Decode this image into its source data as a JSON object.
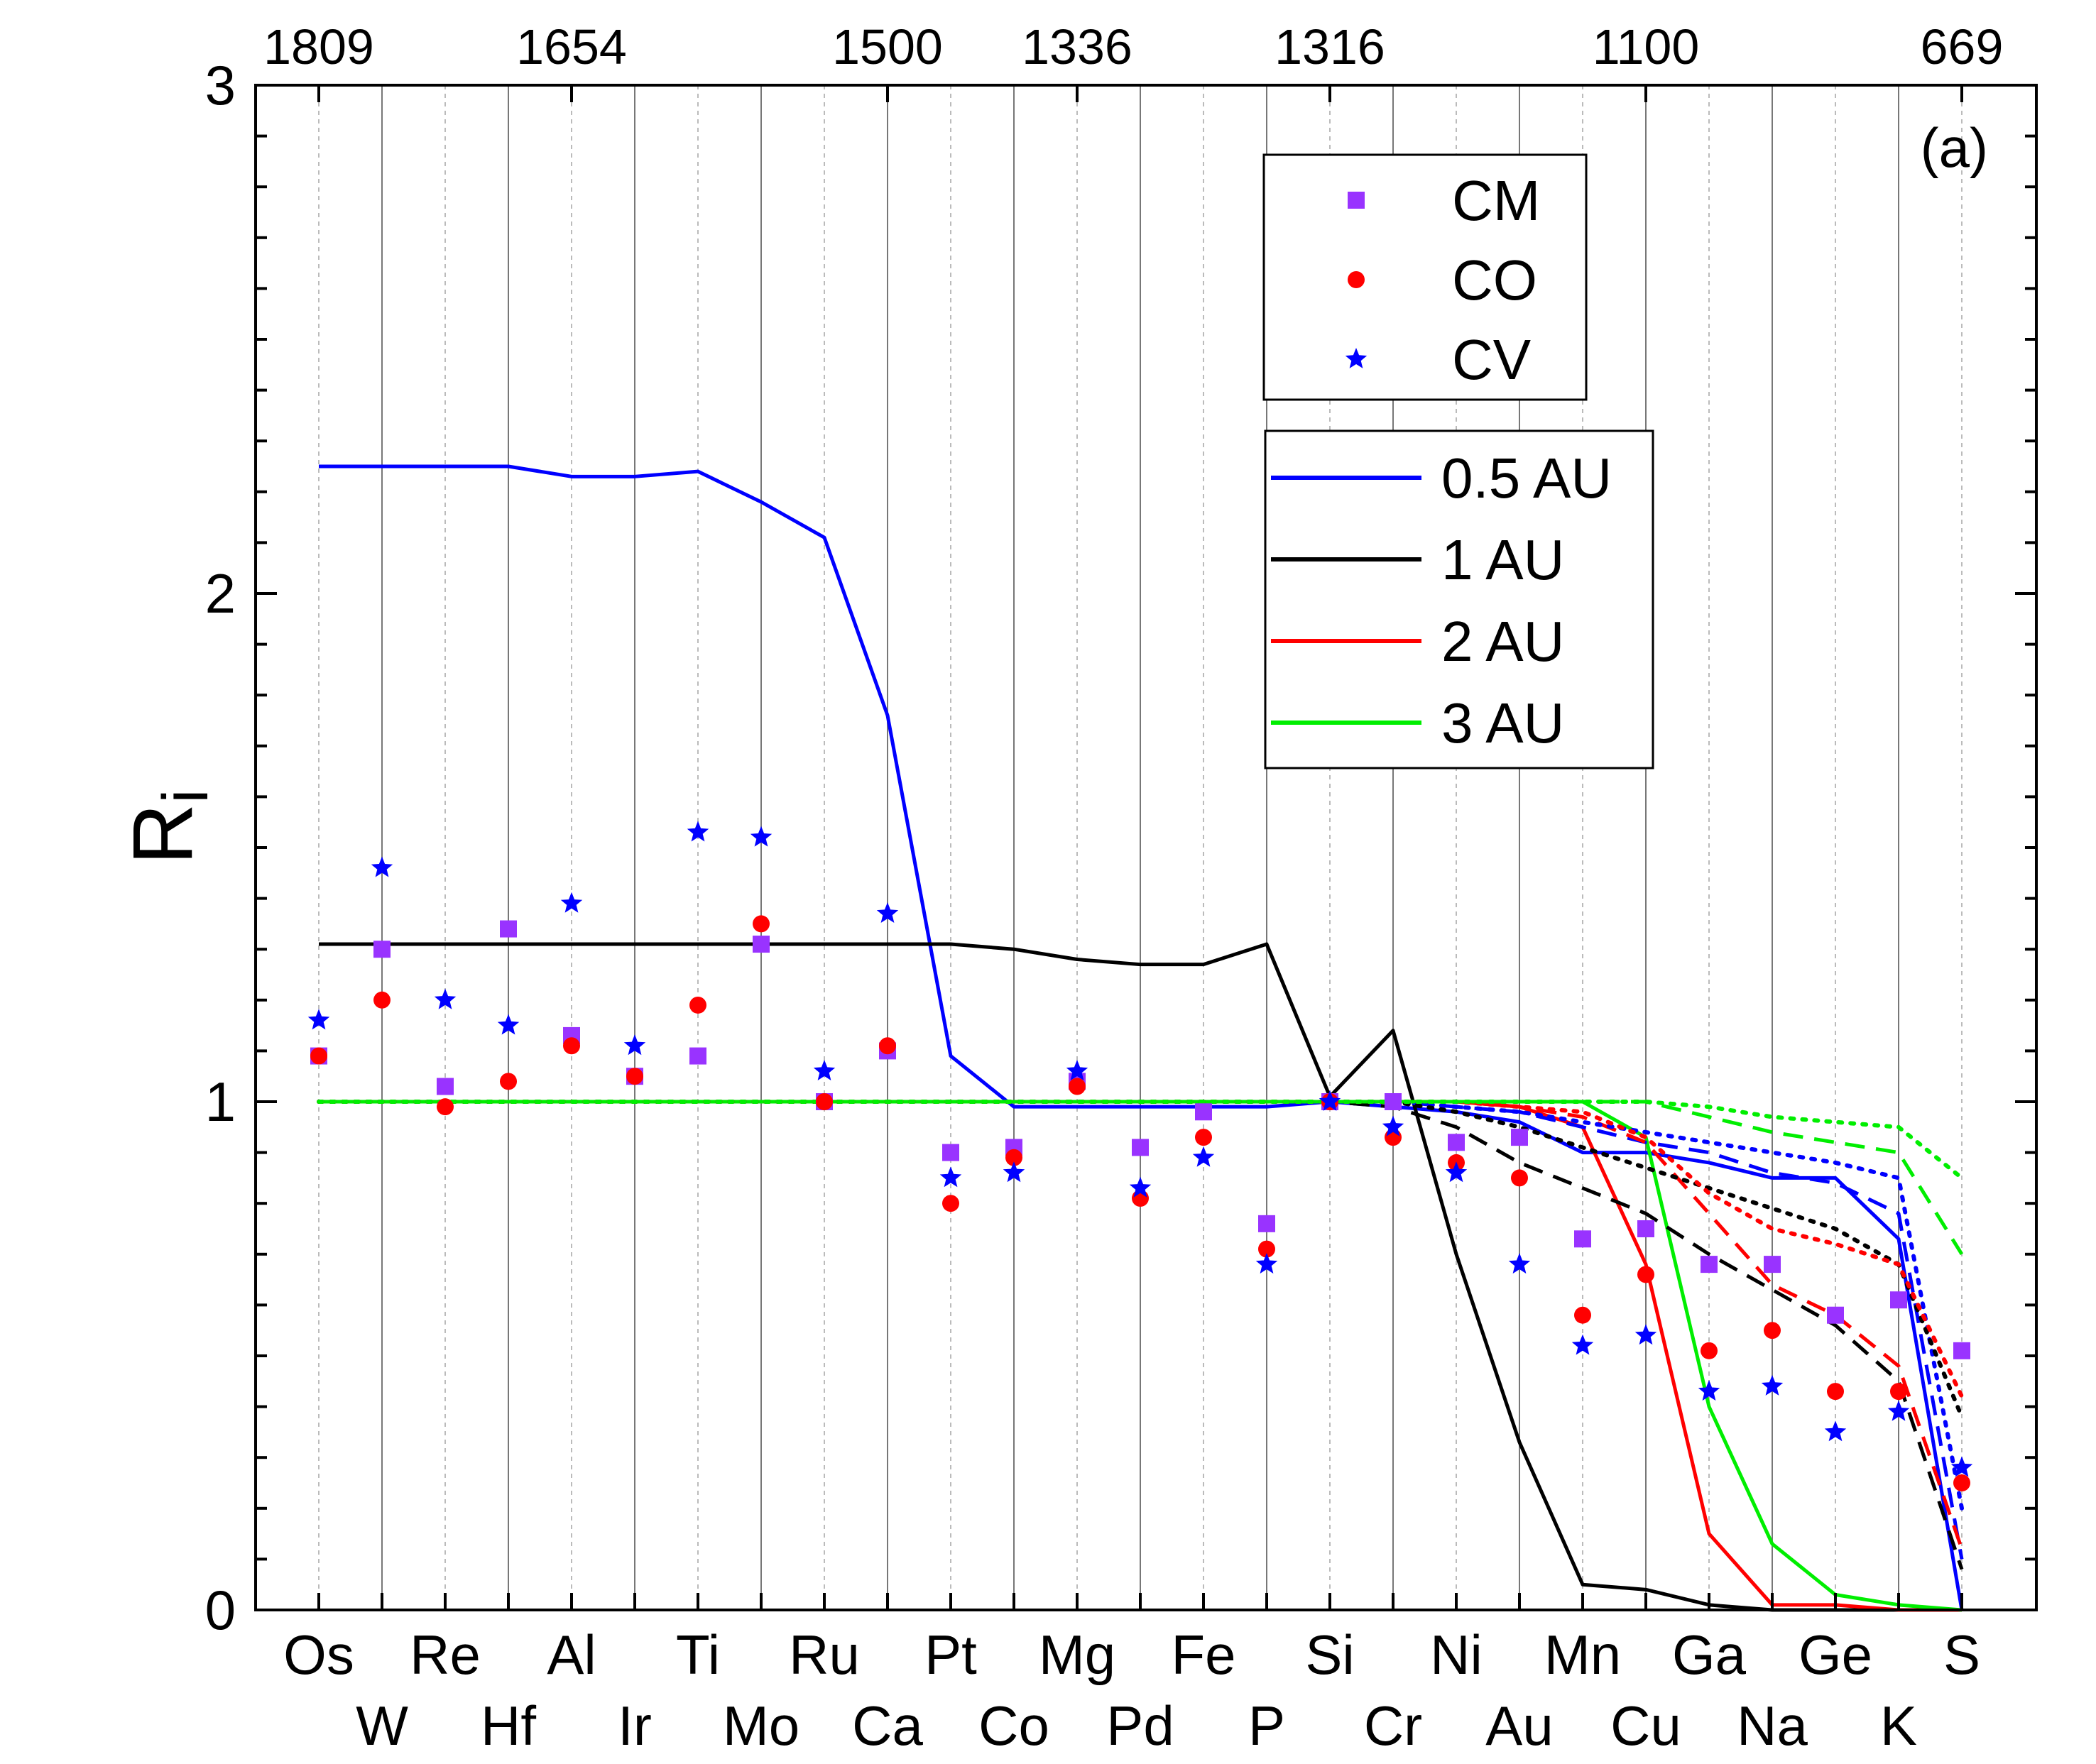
{
  "chart_data": {
    "type": "line",
    "panel_label": "(a)",
    "ylabel": "R",
    "ylabel_subscript": "i",
    "xlabel": "",
    "ylim": [
      0,
      3
    ],
    "y_ticks": [
      "0",
      "1",
      "2",
      "3"
    ],
    "grid": true,
    "legend_position": "top-right",
    "categories": [
      "Os",
      "W",
      "Re",
      "Hf",
      "Al",
      "Ir",
      "Ti",
      "Mo",
      "Ru",
      "Ca",
      "Pt",
      "Co",
      "Mg",
      "Pd",
      "Fe",
      "P",
      "Si",
      "Cr",
      "Ni",
      "Au",
      "Mn",
      "Cu",
      "Ga",
      "Na",
      "Ge",
      "K",
      "S"
    ],
    "x_tick_rows": {
      "upper": [
        "Os",
        "",
        "Re",
        "",
        "Al",
        "",
        "Ti",
        "",
        "Ru",
        "",
        "Pt",
        "",
        "Mg",
        "",
        "Fe",
        "",
        "Si",
        "",
        "Ni",
        "",
        "Mn",
        "",
        "Ga",
        "",
        "Ge",
        "",
        "S"
      ],
      "lower": [
        "",
        "W",
        "",
        "Hf",
        "",
        "Ir",
        "",
        "Mo",
        "",
        "Ca",
        "",
        "Co",
        "",
        "Pd",
        "",
        "P",
        "",
        "Cr",
        "",
        "Au",
        "",
        "Cu",
        "",
        "Na",
        "",
        "K",
        ""
      ]
    },
    "top_axis_ticks": [
      {
        "index": 0,
        "label": "1809"
      },
      {
        "index": 4,
        "label": "1654"
      },
      {
        "index": 9,
        "label": "1500"
      },
      {
        "index": 12,
        "label": "1336"
      },
      {
        "index": 16,
        "label": "1316"
      },
      {
        "index": 21,
        "label": "1100"
      },
      {
        "index": 26,
        "label": "669"
      }
    ],
    "scatter_series": [
      {
        "name": "CM",
        "marker": "square",
        "color": "#9933ff",
        "values": [
          1.09,
          1.3,
          1.03,
          1.34,
          1.13,
          1.05,
          1.09,
          1.31,
          1.0,
          1.1,
          0.9,
          0.91,
          1.04,
          0.91,
          0.98,
          0.76,
          1.0,
          1.0,
          0.92,
          0.93,
          0.73,
          0.75,
          0.68,
          0.68,
          0.58,
          0.61,
          0.51
        ]
      },
      {
        "name": "CO",
        "marker": "circle",
        "color": "#ff0000",
        "values": [
          1.09,
          1.2,
          0.99,
          1.04,
          1.11,
          1.05,
          1.19,
          1.35,
          1.0,
          1.11,
          0.8,
          0.89,
          1.03,
          0.81,
          0.93,
          0.71,
          1.0,
          0.93,
          0.88,
          0.85,
          0.58,
          0.66,
          0.51,
          0.55,
          0.43,
          0.43,
          0.25
        ]
      },
      {
        "name": "CV",
        "marker": "star",
        "color": "#0000ff",
        "values": [
          1.16,
          1.46,
          1.2,
          1.15,
          1.39,
          1.11,
          1.53,
          1.52,
          1.06,
          1.37,
          0.85,
          0.86,
          1.06,
          0.83,
          0.89,
          0.68,
          1.0,
          0.95,
          0.86,
          0.68,
          0.52,
          0.54,
          0.43,
          0.44,
          0.35,
          0.39,
          0.28
        ]
      }
    ],
    "series": [
      {
        "name": "0.5 AU",
        "color": "#0000ff",
        "style": "solid",
        "in_legend": true,
        "values": [
          2.25,
          2.25,
          2.25,
          2.25,
          2.23,
          2.23,
          2.24,
          2.18,
          2.11,
          1.76,
          1.09,
          0.99,
          0.99,
          0.99,
          0.99,
          0.99,
          1.0,
          0.99,
          0.98,
          0.96,
          0.9,
          0.9,
          0.88,
          0.85,
          0.85,
          0.73,
          0.0
        ]
      },
      {
        "name": "1 AU",
        "color": "#000000",
        "style": "solid",
        "in_legend": true,
        "values": [
          1.31,
          1.31,
          1.31,
          1.31,
          1.31,
          1.31,
          1.31,
          1.31,
          1.31,
          1.31,
          1.31,
          1.3,
          1.28,
          1.27,
          1.27,
          1.31,
          1.01,
          1.14,
          0.7,
          0.33,
          0.05,
          0.04,
          0.01,
          0.0,
          0.0,
          0.0,
          0.0
        ]
      },
      {
        "name": "2 AU",
        "color": "#ff0000",
        "style": "solid",
        "in_legend": true,
        "values": [
          1.0,
          1.0,
          1.0,
          1.0,
          1.0,
          1.0,
          1.0,
          1.0,
          1.0,
          1.0,
          1.0,
          1.0,
          1.0,
          1.0,
          1.0,
          1.0,
          1.0,
          1.0,
          1.0,
          0.99,
          0.95,
          0.68,
          0.15,
          0.01,
          0.01,
          0.0,
          0.0
        ]
      },
      {
        "name": "3 AU",
        "color": "#00ee00",
        "style": "solid",
        "in_legend": true,
        "values": [
          1.0,
          1.0,
          1.0,
          1.0,
          1.0,
          1.0,
          1.0,
          1.0,
          1.0,
          1.0,
          1.0,
          1.0,
          1.0,
          1.0,
          1.0,
          1.0,
          1.0,
          1.0,
          1.0,
          1.0,
          1.0,
          0.93,
          0.4,
          0.13,
          0.03,
          0.01,
          0.0
        ]
      },
      {
        "name": "0.5 AU dashed",
        "color": "#0000ff",
        "style": "dashed",
        "in_legend": false,
        "values": [
          1.0,
          1.0,
          1.0,
          1.0,
          1.0,
          1.0,
          1.0,
          1.0,
          1.0,
          1.0,
          1.0,
          1.0,
          1.0,
          1.0,
          1.0,
          1.0,
          1.0,
          1.0,
          0.99,
          0.98,
          0.95,
          0.92,
          0.9,
          0.86,
          0.84,
          0.78,
          0.1
        ]
      },
      {
        "name": "1 AU dashed",
        "color": "#000000",
        "style": "dashed",
        "in_legend": false,
        "values": [
          1.0,
          1.0,
          1.0,
          1.0,
          1.0,
          1.0,
          1.0,
          1.0,
          1.0,
          1.0,
          1.0,
          1.0,
          1.0,
          1.0,
          1.0,
          1.0,
          1.0,
          0.99,
          0.95,
          0.88,
          0.83,
          0.78,
          0.7,
          0.63,
          0.56,
          0.45,
          0.08
        ]
      },
      {
        "name": "2 AU dashed",
        "color": "#ff0000",
        "style": "dashed",
        "in_legend": false,
        "values": [
          1.0,
          1.0,
          1.0,
          1.0,
          1.0,
          1.0,
          1.0,
          1.0,
          1.0,
          1.0,
          1.0,
          1.0,
          1.0,
          1.0,
          1.0,
          1.0,
          1.0,
          1.0,
          1.0,
          0.99,
          0.97,
          0.92,
          0.78,
          0.64,
          0.58,
          0.48,
          0.12
        ]
      },
      {
        "name": "3 AU dashed",
        "color": "#00ee00",
        "style": "dashed",
        "in_legend": false,
        "values": [
          1.0,
          1.0,
          1.0,
          1.0,
          1.0,
          1.0,
          1.0,
          1.0,
          1.0,
          1.0,
          1.0,
          1.0,
          1.0,
          1.0,
          1.0,
          1.0,
          1.0,
          1.0,
          1.0,
          1.0,
          1.0,
          1.0,
          0.97,
          0.94,
          0.92,
          0.9,
          0.7
        ]
      },
      {
        "name": "0.5 AU dotted",
        "color": "#0000ff",
        "style": "dotted",
        "in_legend": false,
        "values": [
          1.0,
          1.0,
          1.0,
          1.0,
          1.0,
          1.0,
          1.0,
          1.0,
          1.0,
          1.0,
          1.0,
          1.0,
          1.0,
          1.0,
          1.0,
          1.0,
          1.0,
          1.0,
          0.99,
          0.98,
          0.96,
          0.94,
          0.92,
          0.9,
          0.88,
          0.85,
          0.2
        ]
      },
      {
        "name": "1 AU dotted",
        "color": "#000000",
        "style": "dotted",
        "in_legend": false,
        "values": [
          1.0,
          1.0,
          1.0,
          1.0,
          1.0,
          1.0,
          1.0,
          1.0,
          1.0,
          1.0,
          1.0,
          1.0,
          1.0,
          1.0,
          1.0,
          1.0,
          1.0,
          1.0,
          0.98,
          0.95,
          0.91,
          0.87,
          0.83,
          0.79,
          0.75,
          0.68,
          0.38
        ]
      },
      {
        "name": "2 AU dotted",
        "color": "#ff0000",
        "style": "dotted",
        "in_legend": false,
        "values": [
          1.0,
          1.0,
          1.0,
          1.0,
          1.0,
          1.0,
          1.0,
          1.0,
          1.0,
          1.0,
          1.0,
          1.0,
          1.0,
          1.0,
          1.0,
          1.0,
          1.0,
          1.0,
          1.0,
          0.99,
          0.98,
          0.93,
          0.82,
          0.75,
          0.72,
          0.68,
          0.42
        ]
      },
      {
        "name": "3 AU dotted",
        "color": "#00ee00",
        "style": "dotted",
        "in_legend": false,
        "values": [
          1.0,
          1.0,
          1.0,
          1.0,
          1.0,
          1.0,
          1.0,
          1.0,
          1.0,
          1.0,
          1.0,
          1.0,
          1.0,
          1.0,
          1.0,
          1.0,
          1.0,
          1.0,
          1.0,
          1.0,
          1.0,
          1.0,
          0.99,
          0.97,
          0.96,
          0.95,
          0.85
        ]
      }
    ],
    "legends": {
      "scatter": [
        "CM",
        "CO",
        "CV"
      ],
      "lines": [
        "0.5 AU",
        "1 AU",
        "2 AU",
        "3 AU"
      ]
    }
  }
}
